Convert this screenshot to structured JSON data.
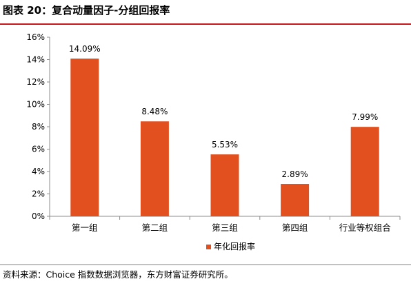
{
  "header": {
    "title": "图表 20：复合动量因子-分组回报率"
  },
  "footer": {
    "source": "资料来源：Choice 指数数据浏览器，东方财富证券研究所。"
  },
  "colors": {
    "bar": "#e2501f",
    "axis": "#8c8c8c",
    "title_rule": "#c8161d"
  },
  "chart_data": {
    "type": "bar",
    "title": "",
    "xlabel": "",
    "ylabel": "",
    "categories": [
      "第一组",
      "第二组",
      "第三组",
      "第四组",
      "行业等权组合"
    ],
    "series": [
      {
        "name": "年化回报率",
        "values": [
          14.09,
          8.48,
          5.53,
          2.89,
          7.99
        ],
        "labels": [
          "14.09%",
          "8.48%",
          "5.53%",
          "2.89%",
          "7.99%"
        ]
      }
    ],
    "ylim": [
      0,
      16
    ],
    "yticks": [
      0,
      2,
      4,
      6,
      8,
      10,
      12,
      14,
      16
    ],
    "ytick_labels": [
      "0%",
      "2%",
      "4%",
      "6%",
      "8%",
      "10%",
      "12%",
      "14%",
      "16%"
    ],
    "grid": false,
    "legend": "bottom-center"
  }
}
